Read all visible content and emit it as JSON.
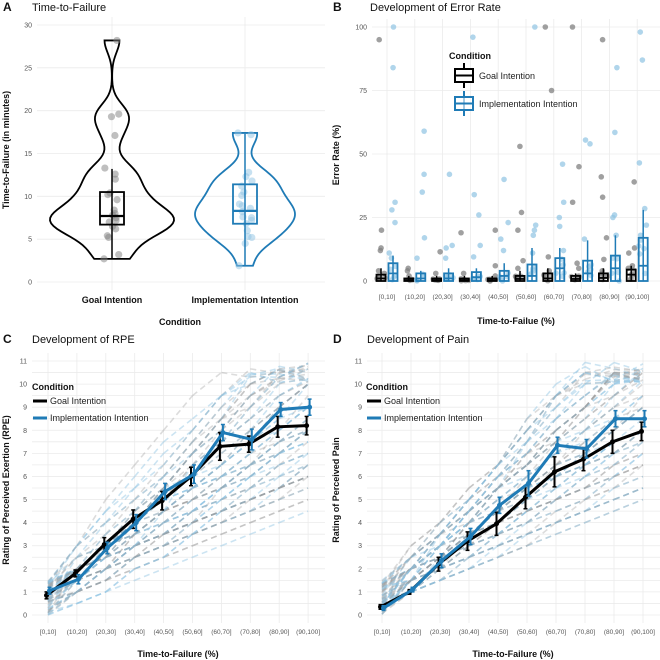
{
  "colors": {
    "goal": "#000000",
    "impl": "#1f7bb6",
    "goal_point": "#808080",
    "impl_point": "#8fc3e3"
  },
  "chart_data": [
    {
      "panel": "A",
      "type": "violin+box",
      "title": "Time-to-Failure",
      "xlabel": "Condition",
      "ylabel": "Time-to-Failure (in minutes)",
      "ylim": [
        0,
        30
      ],
      "yticks": [
        "0",
        "5",
        "10",
        "15",
        "20",
        "25",
        "30"
      ],
      "grid": true,
      "categories": [
        "Goal Intention",
        "Implementation Intention"
      ],
      "series": [
        {
          "name": "Goal Intention",
          "box": {
            "min": 2.7,
            "q1": 6.7,
            "median": 7.7,
            "q3": 10.5,
            "max": 13.2
          },
          "points": [
            2.7,
            3.2,
            5.2,
            5.4,
            6.2,
            6.5,
            7.0,
            7.2,
            7.5,
            7.8,
            8.0,
            8.4,
            9.6,
            10.2,
            10.4,
            12.0,
            12.6,
            13.3,
            17.1,
            19.3,
            19.6,
            28.2
          ]
        },
        {
          "name": "Implementation Intention",
          "box": {
            "min": 1.9,
            "q1": 6.8,
            "median": 8.3,
            "q3": 11.4,
            "max": 17.3
          },
          "points": [
            1.9,
            4.5,
            5.2,
            5.3,
            6.0,
            6.8,
            7.2,
            7.5,
            7.6,
            8.2,
            8.6,
            8.9,
            9.1,
            10.1,
            10.5,
            11.2,
            11.8,
            12.3,
            12.8,
            17.2,
            17.4
          ]
        }
      ]
    },
    {
      "panel": "B",
      "type": "box+points",
      "title": "Development of Error Rate",
      "xlabel": "Time-to-Failue (%)",
      "ylabel": "Error Rate (%)",
      "ylim": [
        0,
        100
      ],
      "yticks": [
        "0",
        "25",
        "50",
        "75",
        "100"
      ],
      "grid": true,
      "categories": [
        "[0,10]",
        "(10,20]",
        "(20,30]",
        "(30,40]",
        "(40,50]",
        "(50,60]",
        "(60,70]",
        "(70,80]",
        "(80,90]",
        "(90,100]"
      ],
      "legend": {
        "title": "Condition",
        "position": "top-center"
      },
      "series": [
        {
          "name": "Goal Intention",
          "q1": [
            0,
            0,
            0,
            0,
            0,
            0,
            0,
            0,
            0,
            0
          ],
          "median": [
            1,
            0.3,
            0.3,
            0.3,
            0.3,
            0.8,
            1,
            0.8,
            1.2,
            2.5
          ],
          "q3": [
            2.5,
            1,
            1,
            1,
            1,
            2,
            3,
            2,
            3,
            4.5
          ],
          "upper": [
            5,
            2,
            2,
            2,
            2,
            4,
            5,
            3,
            5,
            6
          ],
          "points": [
            [
              95,
              20,
              13,
              12,
              4,
              3
            ],
            [
              5,
              4,
              2
            ],
            [
              11.5,
              3
            ],
            [
              19,
              3
            ],
            [
              20,
              6,
              2
            ],
            [
              53,
              27,
              20,
              8,
              5
            ],
            [
              100,
              75,
              9.5,
              4
            ],
            [
              100,
              45,
              31,
              7,
              5
            ],
            [
              95,
              41,
              33,
              17,
              8.5,
              4
            ],
            [
              39,
              13,
              11,
              6,
              5
            ]
          ]
        },
        {
          "name": "Implementation Intention",
          "q1": [
            0,
            0,
            0,
            0,
            0,
            0,
            0,
            0,
            0,
            0
          ],
          "median": [
            3,
            1,
            1,
            1.5,
            2,
            2,
            5,
            3,
            5,
            6
          ],
          "q3": [
            7,
            3,
            3,
            3.5,
            4,
            6.5,
            9,
            8,
            10,
            17
          ],
          "upper": [
            10,
            4,
            5,
            5,
            7,
            13,
            13,
            16,
            18,
            28
          ],
          "points": [
            [
              100,
              84,
              31,
              28,
              23,
              11,
              9
            ],
            [
              59,
              42,
              35,
              17,
              9
            ],
            [
              42,
              14,
              13,
              9
            ],
            [
              96,
              34,
              26,
              14,
              9.5
            ],
            [
              40,
              23,
              16.5,
              12
            ],
            [
              100,
              22,
              20,
              18,
              11
            ],
            [
              46,
              31,
              25,
              21.5,
              12
            ],
            [
              55.5,
              54,
              16.5
            ],
            [
              84,
              58.5,
              26,
              25,
              18
            ],
            [
              98,
              87,
              46.5,
              28.5,
              22,
              18
            ]
          ]
        }
      ]
    },
    {
      "panel": "C",
      "type": "line",
      "title": "Development of RPE",
      "xlabel": "Time-to-Failure (%)",
      "ylabel": "Rating of Perceived Exertion (RPE)",
      "ylim": [
        0,
        11
      ],
      "yticks": [
        "0",
        "1",
        "2",
        "3",
        "4",
        "5",
        "6",
        "7",
        "8",
        "9",
        "10",
        "11"
      ],
      "grid": true,
      "categories": [
        "[0,10]",
        "(10,20]",
        "(20,30]",
        "(30,40]",
        "(40,50]",
        "(50,60]",
        "(60,70]",
        "(70,80]",
        "(80,90]",
        "(90,100]"
      ],
      "legend": {
        "title": "Condition",
        "position": "top-left"
      },
      "series": [
        {
          "name": "Goal Intention",
          "values": [
            0.85,
            1.8,
            3.05,
            4.15,
            4.95,
            6.0,
            7.3,
            7.4,
            8.15,
            8.2
          ],
          "se": [
            0.15,
            0.15,
            0.3,
            0.4,
            0.4,
            0.4,
            0.6,
            0.35,
            0.45,
            0.4
          ]
        },
        {
          "name": "Implementation Intention",
          "values": [
            1.05,
            1.55,
            2.9,
            4.0,
            5.35,
            6.1,
            7.9,
            7.6,
            8.9,
            9.0
          ],
          "se": [
            0.15,
            0.2,
            0.25,
            0.35,
            0.35,
            0.4,
            0.35,
            0.45,
            0.3,
            0.35
          ]
        }
      ]
    },
    {
      "panel": "D",
      "type": "line",
      "title": "Development of Pain",
      "xlabel": "Time-to-Failure (%)",
      "ylabel": "Rating of Perceived Pain",
      "ylim": [
        0,
        11
      ],
      "yticks": [
        "0",
        "1",
        "2",
        "3",
        "4",
        "5",
        "6",
        "7",
        "8",
        "9",
        "10",
        "11"
      ],
      "grid": true,
      "categories": [
        "[0,10]",
        "(10,20]",
        "(20,30]",
        "(30,40]",
        "(40,50]",
        "(50,60]",
        "(60,70]",
        "(70,80]",
        "(80,90]",
        "(90,100]"
      ],
      "legend": {
        "title": "Condition",
        "position": "top-left"
      },
      "series": [
        {
          "name": "Goal Intention",
          "values": [
            0.35,
            1.0,
            2.2,
            3.2,
            3.95,
            5.1,
            6.2,
            6.75,
            7.5,
            7.95
          ],
          "se": [
            0.1,
            0.1,
            0.3,
            0.4,
            0.5,
            0.5,
            0.65,
            0.5,
            0.5,
            0.4
          ]
        },
        {
          "name": "Implementation Intention",
          "values": [
            0.3,
            1.1,
            2.35,
            3.4,
            4.75,
            5.7,
            7.35,
            7.2,
            8.5,
            8.5
          ],
          "se": [
            0.1,
            0.1,
            0.3,
            0.35,
            0.35,
            0.55,
            0.35,
            0.4,
            0.35,
            0.35
          ]
        }
      ]
    }
  ],
  "panel_letters": [
    "A",
    "B",
    "C",
    "D"
  ]
}
